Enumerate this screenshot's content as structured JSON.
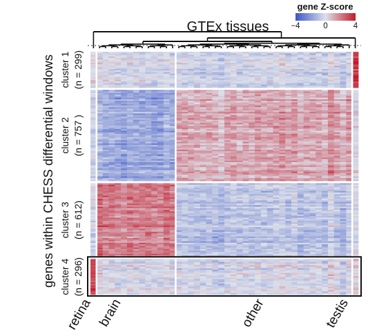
{
  "chart_data": {
    "type": "heatmap",
    "title": "GTEx tissues",
    "ylabel": "genes within CHESS differential windows",
    "colorbar": {
      "title": "gene Z-score",
      "ticks": [
        "−4",
        "0",
        "4"
      ],
      "range": [
        -4,
        4
      ],
      "colors": {
        "low": "#3a55c8",
        "mid": "#dde1ea",
        "high": "#c41a2b"
      }
    },
    "column_groups": [
      {
        "label": "retina",
        "columns": 1
      },
      {
        "label": "brain",
        "columns": 13
      },
      {
        "label": "other",
        "columns": 29
      },
      {
        "label": "testis",
        "columns": 1
      }
    ],
    "row_clusters": [
      {
        "label": "cluster 1",
        "n_label": "(n = 299)",
        "genes": 299
      },
      {
        "label": "cluster 2",
        "n_label": "(n = 757 )",
        "genes": 757
      },
      {
        "label": "cluster 3",
        "n_label": "(n = 612)",
        "genes": 612
      },
      {
        "label": "cluster 4",
        "n_label": "(n = 296)",
        "genes": 296
      }
    ],
    "cluster_mean_zscore": {
      "retina": [
        0.1,
        -0.4,
        -0.2,
        3.0
      ],
      "brain": [
        -0.2,
        -1.6,
        2.0,
        -0.2
      ],
      "other": [
        -0.3,
        1.2,
        -0.8,
        -0.2
      ],
      "testis": [
        3.2,
        -0.2,
        -0.4,
        0.2
      ]
    },
    "highlighted_cluster": "cluster 4"
  }
}
